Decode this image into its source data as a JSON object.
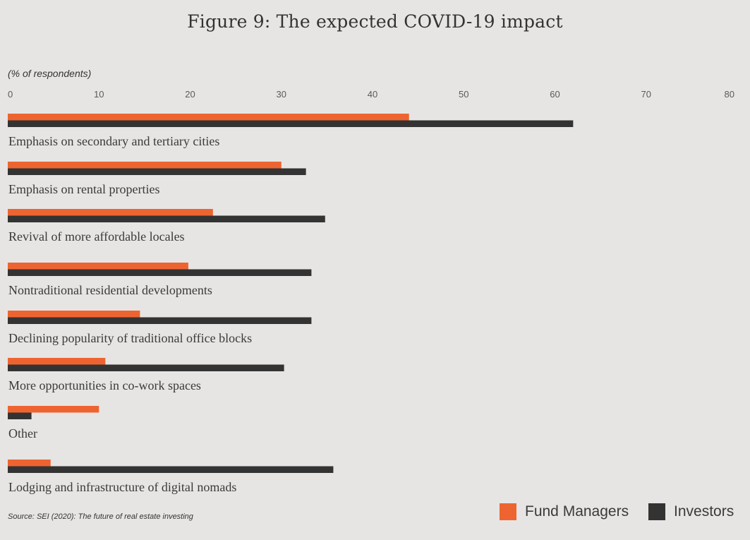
{
  "chart_data": {
    "type": "bar",
    "orientation": "horizontal",
    "title": "Figure 9: The expected COVID-19 impact",
    "unit_label": "(% of respondents)",
    "xlim": [
      0,
      80
    ],
    "xticks": [
      0,
      10,
      20,
      30,
      40,
      50,
      60,
      70,
      80
    ],
    "categories": [
      "Emphasis on secondary and tertiary cities",
      "Emphasis on rental properties",
      "Revival of more affordable locales",
      "Nontraditional residential developments",
      "Declining popularity of traditional office blocks",
      "More opportunities in co-work spaces",
      "Other",
      "Lodging and infrastructure of digital nomads"
    ],
    "series": [
      {
        "name": "Fund Managers",
        "color": "#ee6431",
        "values": [
          44,
          30,
          22.5,
          19.8,
          14.5,
          10.7,
          10,
          4.7
        ]
      },
      {
        "name": "Investors",
        "color": "#333333",
        "values": [
          62,
          32.7,
          34.8,
          33.3,
          33.3,
          30.3,
          2.6,
          35.7
        ]
      }
    ],
    "grid": false,
    "legend_position": "bottom-right",
    "source": "Source: SEI (2020): The future of real estate investing"
  }
}
